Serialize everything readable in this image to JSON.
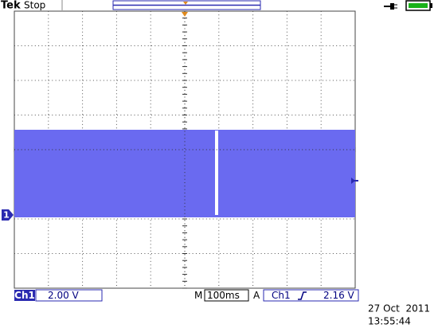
{
  "header": {
    "brand": "Tek",
    "status": "Stop"
  },
  "screen": {
    "channel_marker": "1"
  },
  "footer": {
    "channel": "Ch1",
    "volts_per_div": "2.00 V",
    "time_label": "M",
    "time_per_div": "100ms",
    "trigger_label": "A",
    "trigger_channel": "Ch1",
    "trigger_level": "2.16 V"
  },
  "timestamp": {
    "date": "27 Oct  2011",
    "time": "13:55:44"
  }
}
